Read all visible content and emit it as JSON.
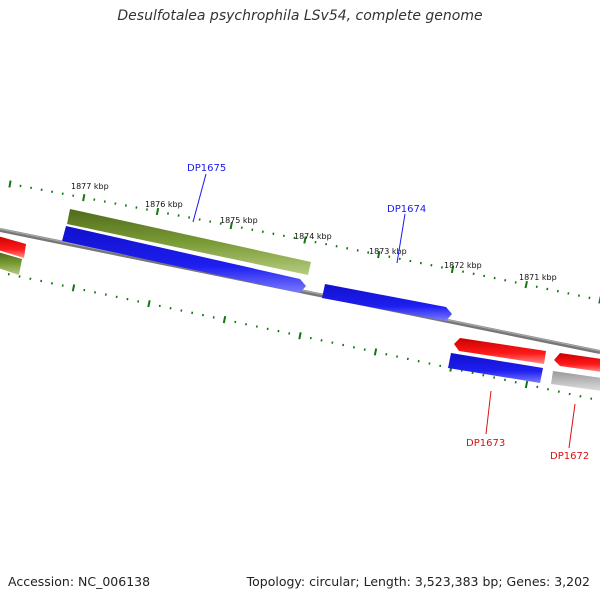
{
  "title": "Desulfotalea psychrophila LSv54, complete genome",
  "footer": {
    "accession": "Accession: NC_006138",
    "summary": "Topology: circular; Length: 3,523,383 bp; Genes: 3,202"
  },
  "colors": {
    "forward_cds": "#6b8e23",
    "reverse_cds_red": "#ee1111",
    "forward_blue": "#1a1aee",
    "other_gray": "#b8b8b8",
    "backbone": "#888888",
    "ticks": "#117711"
  },
  "scale_labels": [
    "1877 kbp",
    "1876 kbp",
    "1875 kbp",
    "1874 kbp",
    "1873 kbp",
    "1872 kbp",
    "1871 kbp"
  ],
  "gene_labels": [
    {
      "name": "DP1675",
      "color": "#1a1aee"
    },
    {
      "name": "DP1674",
      "color": "#1a1aee"
    },
    {
      "name": "DP1673",
      "color": "#dd1111"
    },
    {
      "name": "DP1672",
      "color": "#dd1111"
    }
  ]
}
